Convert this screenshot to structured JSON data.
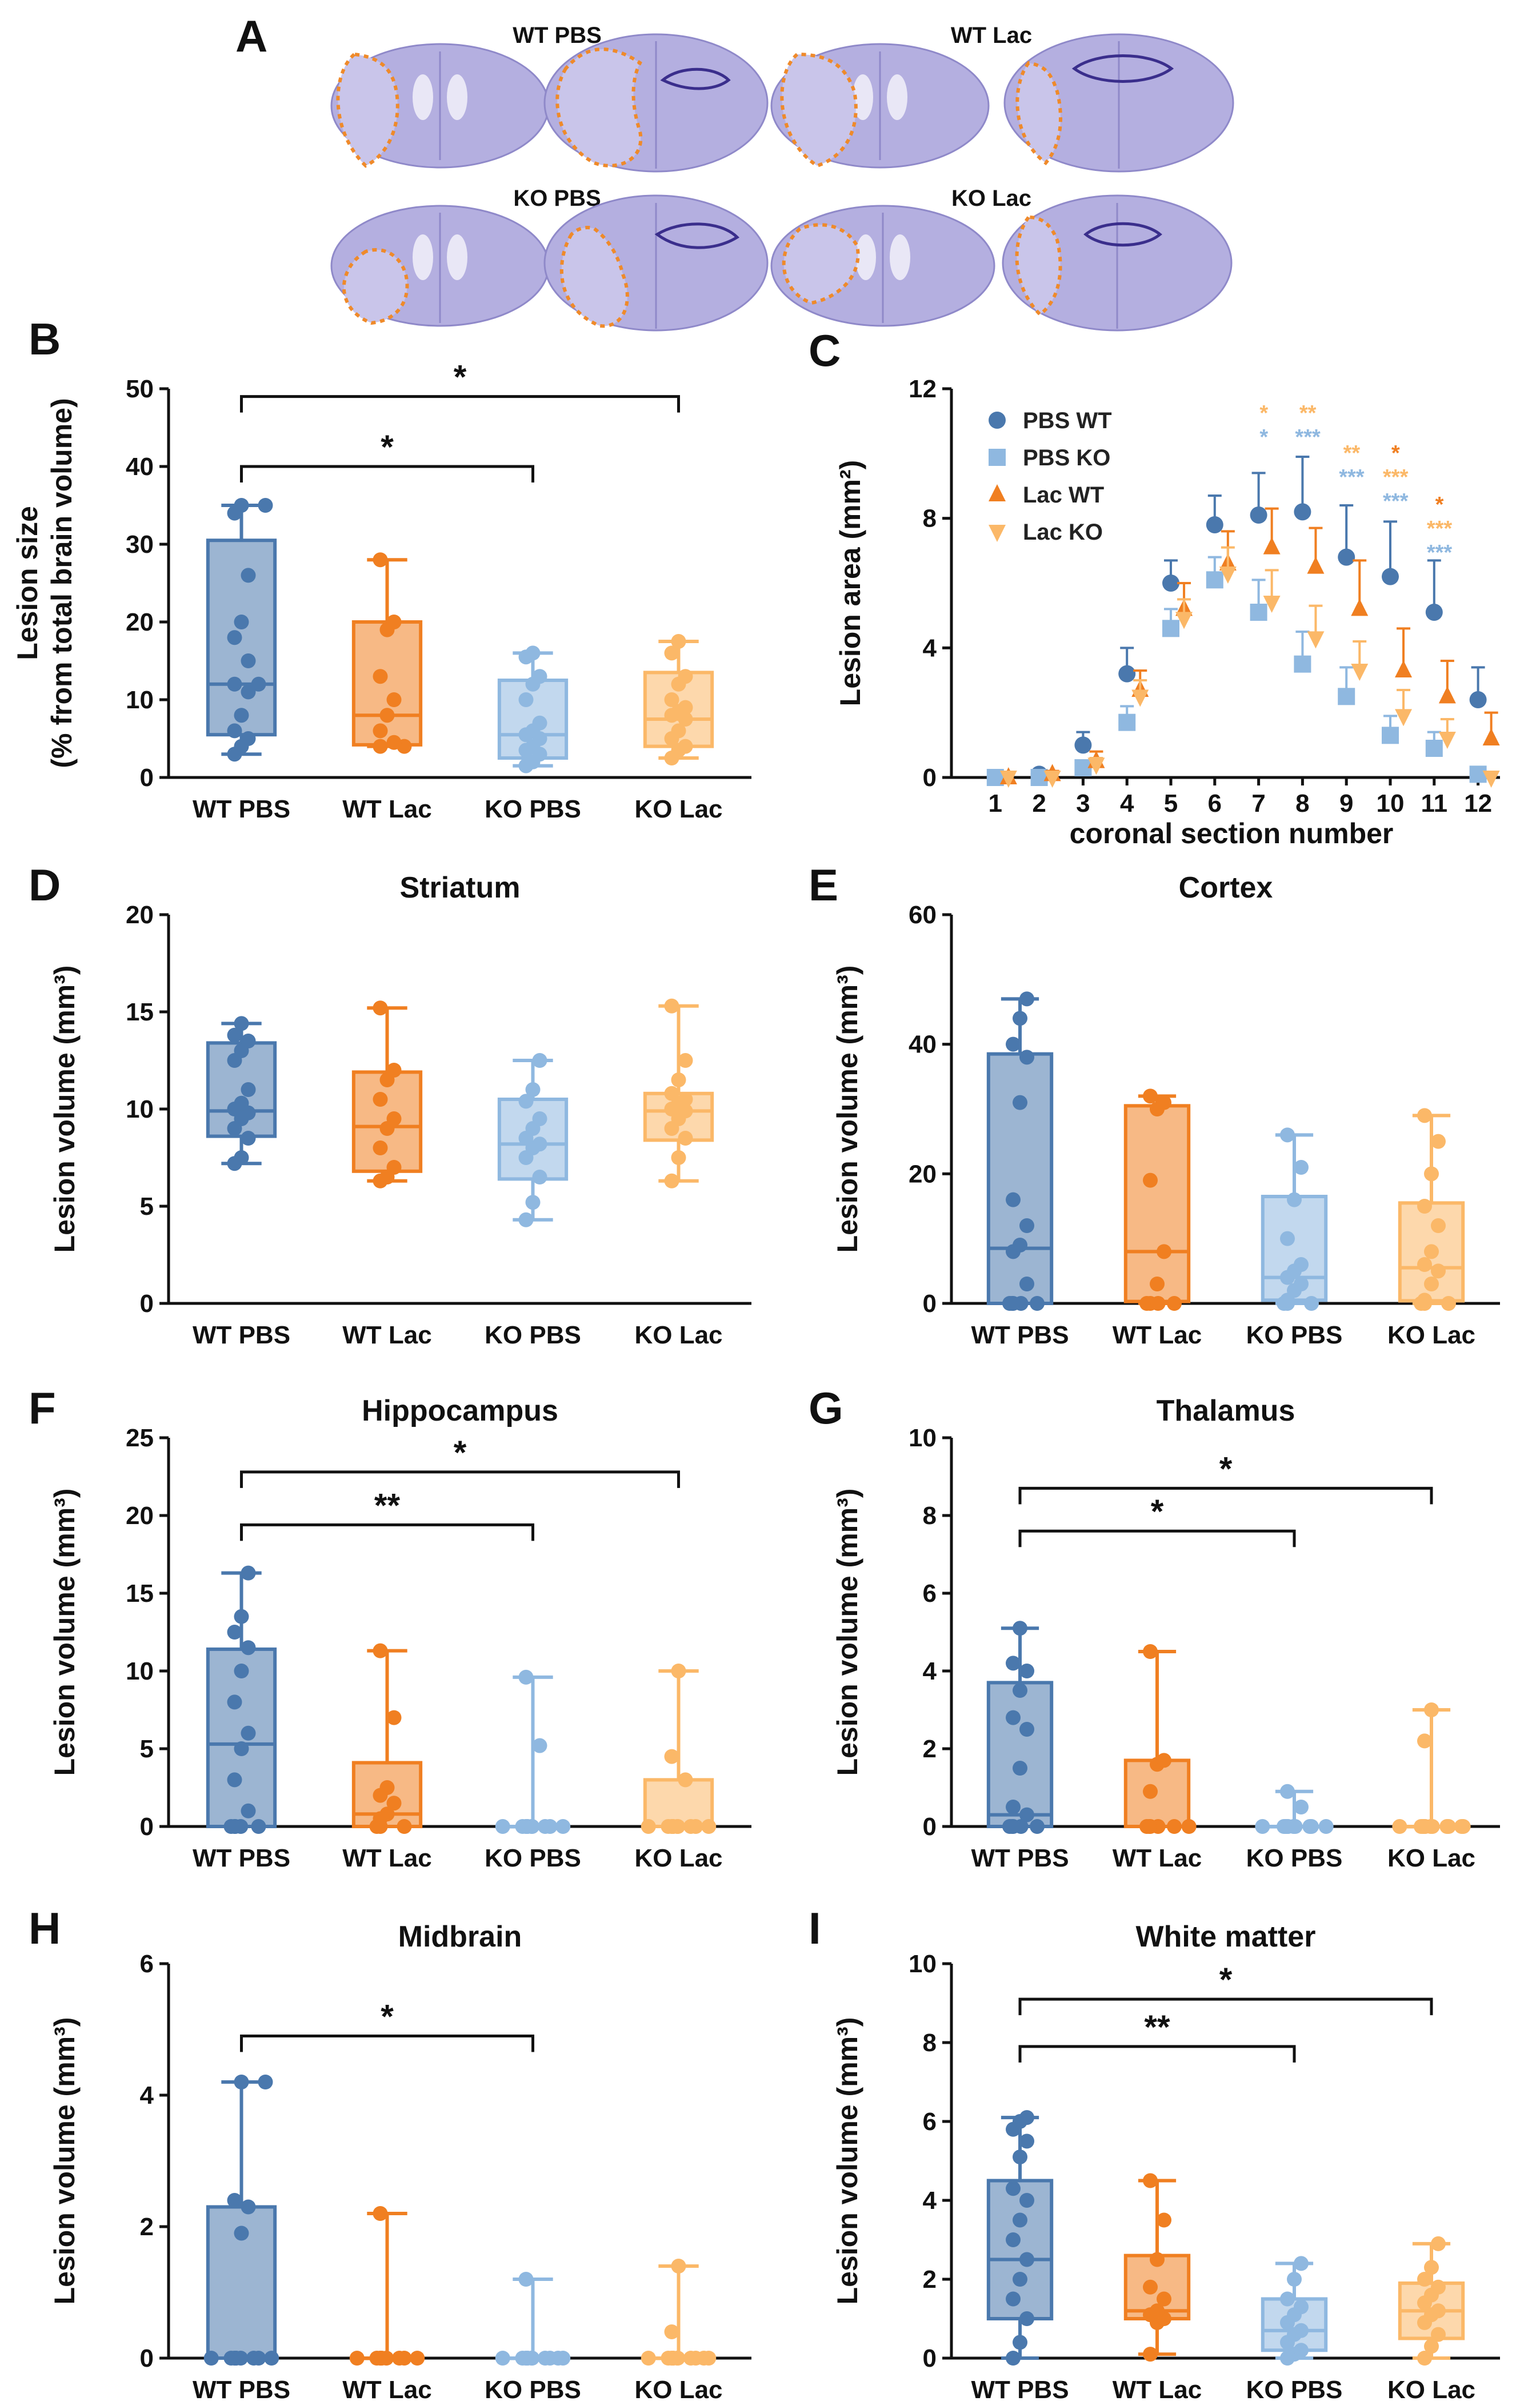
{
  "colors": {
    "wt_pbs": "#4a78ad",
    "wt_lac": "#f07f21",
    "ko_pbs": "#8fb8e0",
    "ko_lac": "#fbb868",
    "axis": "#111111",
    "brain": "#a5a0d6",
    "lesion_outline": "#ef8a2a"
  },
  "panel_a": {
    "letter": "A",
    "images": [
      {
        "label": "WT PBS"
      },
      {
        "label": "WT Lac"
      },
      {
        "label": "KO PBS"
      },
      {
        "label": "KO Lac"
      }
    ]
  },
  "chart_data": [
    {
      "id": "B",
      "letter": "B",
      "type": "box",
      "title": "",
      "ylabel_line1": "Lesion size",
      "ylabel_line2": "(% from total brain volume)",
      "ylim": [
        0,
        50
      ],
      "yticks": [
        0,
        10,
        20,
        30,
        40,
        50
      ],
      "categories": [
        "WT PBS",
        "WT Lac",
        "KO PBS",
        "KO Lac"
      ],
      "boxes": [
        {
          "min": 3,
          "q1": 5.5,
          "median": 12,
          "q3": 30.5,
          "max": 35,
          "points": [
            3,
            4,
            5,
            6,
            8,
            11,
            12,
            12,
            15,
            18,
            20,
            26,
            34,
            35,
            35
          ]
        },
        {
          "min": 4,
          "q1": 4.2,
          "median": 8,
          "q3": 20,
          "max": 28,
          "points": [
            4,
            4,
            4.5,
            6,
            8,
            10,
            13,
            19,
            20,
            28
          ]
        },
        {
          "min": 1.5,
          "q1": 2.5,
          "median": 5.5,
          "q3": 12.5,
          "max": 16,
          "points": [
            1.5,
            2,
            3,
            3.5,
            4,
            5,
            5.5,
            6,
            7,
            10,
            12,
            13,
            15.5,
            16
          ]
        },
        {
          "min": 2.5,
          "q1": 4,
          "median": 7.5,
          "q3": 13.5,
          "max": 17.5,
          "points": [
            2.5,
            3.5,
            4,
            5,
            6,
            7.5,
            8,
            8.5,
            9,
            10,
            12,
            13,
            16,
            17.5
          ]
        }
      ],
      "brackets": [
        {
          "from": 0,
          "to": 3,
          "level": 49,
          "label": "*"
        },
        {
          "from": 0,
          "to": 2,
          "level": 40,
          "label": "*"
        }
      ]
    },
    {
      "id": "C",
      "letter": "C",
      "type": "scatter",
      "ylabel": "Lesion area (mm²)",
      "xlabel": "coronal section number",
      "xlim": [
        0,
        12.5
      ],
      "ylim": [
        0,
        12
      ],
      "yticks": [
        0,
        4,
        8,
        12
      ],
      "x": [
        1,
        2,
        3,
        4,
        5,
        6,
        7,
        8,
        9,
        10,
        11,
        12
      ],
      "series": [
        {
          "name": "PBS WT",
          "marker": "circle",
          "color": "#4a78ad",
          "offset": 0,
          "values": [
            0,
            0.1,
            1,
            3.2,
            6,
            7.8,
            8.1,
            8.2,
            6.8,
            6.2,
            5.1,
            2.4
          ],
          "errors": [
            0,
            0.1,
            0.4,
            0.8,
            0.7,
            0.9,
            1.3,
            1.7,
            1.6,
            1.7,
            1.6,
            1.0
          ]
        },
        {
          "name": "PBS KO",
          "marker": "square",
          "color": "#8fb8e0",
          "offset": 0,
          "values": [
            0,
            0,
            0.3,
            1.7,
            4.6,
            6.1,
            5.1,
            3.5,
            2.5,
            1.3,
            0.9,
            0.1
          ],
          "errors": [
            0,
            0,
            0.2,
            0.5,
            0.6,
            0.7,
            1.0,
            1.0,
            0.9,
            0.6,
            0.5,
            0.1
          ]
        },
        {
          "name": "Lac WT",
          "marker": "triangle-up",
          "color": "#f07f21",
          "offset": 0.3,
          "values": [
            0,
            0.1,
            0.5,
            2.7,
            5.2,
            6.6,
            7.1,
            6.5,
            5.2,
            3.3,
            2.5,
            1.2
          ],
          "errors": [
            0,
            0.1,
            0.3,
            0.6,
            0.8,
            1.0,
            1.2,
            1.2,
            1.5,
            1.3,
            1.1,
            0.8
          ]
        },
        {
          "name": "Lac KO",
          "marker": "triangle-down",
          "color": "#fbb868",
          "offset": 0.3,
          "values": [
            0,
            0,
            0.4,
            2.5,
            4.9,
            6.3,
            5.4,
            4.3,
            3.3,
            1.9,
            1.2,
            0
          ],
          "errors": [
            0,
            0,
            0.2,
            0.5,
            0.6,
            0.8,
            1.0,
            1.0,
            0.9,
            0.8,
            0.6,
            0
          ]
        }
      ],
      "significance": [
        {
          "x": 7,
          "labels": [
            {
              "text": "*",
              "color": "#fbb868"
            },
            {
              "text": "*",
              "color": "#8fb8e0"
            }
          ]
        },
        {
          "x": 8,
          "labels": [
            {
              "text": "**",
              "color": "#fbb868"
            },
            {
              "text": "***",
              "color": "#8fb8e0"
            }
          ]
        },
        {
          "x": 9,
          "labels": [
            {
              "text": "**",
              "color": "#fbb868"
            },
            {
              "text": "***",
              "color": "#8fb8e0"
            }
          ]
        },
        {
          "x": 10,
          "labels": [
            {
              "text": "*",
              "color": "#f07f21"
            },
            {
              "text": "***",
              "color": "#fbb868"
            },
            {
              "text": "***",
              "color": "#8fb8e0"
            }
          ]
        },
        {
          "x": 11,
          "labels": [
            {
              "text": "*",
              "color": "#f07f21"
            },
            {
              "text": "***",
              "color": "#fbb868"
            },
            {
              "text": "***",
              "color": "#8fb8e0"
            }
          ]
        }
      ]
    },
    {
      "id": "D",
      "letter": "D",
      "type": "box",
      "title": "Striatum",
      "ylabel": "Lesion volume (mm³)",
      "ylim": [
        0,
        20
      ],
      "yticks": [
        0,
        5,
        10,
        15,
        20
      ],
      "categories": [
        "WT PBS",
        "WT Lac",
        "KO PBS",
        "KO Lac"
      ],
      "boxes": [
        {
          "min": 7.2,
          "q1": 8.6,
          "median": 9.9,
          "q3": 13.4,
          "max": 14.4,
          "points": [
            7.2,
            7.5,
            8.5,
            9,
            9.5,
            9.8,
            10,
            10.3,
            11,
            12.5,
            13,
            13.5,
            13.8,
            14.4
          ]
        },
        {
          "min": 6.3,
          "q1": 6.8,
          "median": 9.1,
          "q3": 11.9,
          "max": 15.2,
          "points": [
            6.3,
            6.5,
            7,
            8,
            9,
            9.5,
            10.5,
            11.5,
            12,
            15.2
          ]
        },
        {
          "min": 4.3,
          "q1": 6.4,
          "median": 8.2,
          "q3": 10.5,
          "max": 12.5,
          "points": [
            4.3,
            5.2,
            6.5,
            7.5,
            8,
            8.2,
            8.5,
            9,
            9.5,
            10.4,
            11,
            12.5
          ]
        },
        {
          "min": 6.3,
          "q1": 8.4,
          "median": 9.9,
          "q3": 10.8,
          "max": 15.3,
          "points": [
            6.3,
            7.5,
            8.5,
            9,
            9.5,
            9.9,
            10,
            10.3,
            10.5,
            10.8,
            11.5,
            12.5,
            15.3
          ]
        }
      ],
      "brackets": []
    },
    {
      "id": "E",
      "letter": "E",
      "type": "box",
      "title": "Cortex",
      "ylabel": "Lesion volume (mm³)",
      "ylim": [
        0,
        60
      ],
      "yticks": [
        0,
        20,
        40,
        60
      ],
      "categories": [
        "WT PBS",
        "WT Lac",
        "KO PBS",
        "KO Lac"
      ],
      "boxes": [
        {
          "min": 0,
          "q1": 0,
          "median": 8.5,
          "q3": 38.5,
          "max": 47,
          "points": [
            0,
            0,
            0,
            0,
            0,
            3,
            8,
            9,
            12,
            16,
            31,
            38,
            40,
            44,
            47
          ]
        },
        {
          "min": 0,
          "q1": 0.3,
          "median": 8,
          "q3": 30.5,
          "max": 32,
          "points": [
            0,
            0,
            0,
            0,
            3,
            8,
            19,
            30,
            31,
            32
          ]
        },
        {
          "min": 0,
          "q1": 0.5,
          "median": 4,
          "q3": 16.5,
          "max": 26,
          "points": [
            0,
            0,
            0,
            0.5,
            2,
            3,
            4,
            5,
            6,
            10,
            16,
            21,
            26
          ]
        },
        {
          "min": 0,
          "q1": 0.4,
          "median": 5.5,
          "q3": 15.5,
          "max": 29,
          "points": [
            0,
            0,
            0,
            0.5,
            3,
            5,
            6,
            8,
            12,
            15,
            20,
            25,
            29
          ]
        }
      ],
      "brackets": []
    },
    {
      "id": "F",
      "letter": "F",
      "type": "box",
      "title": "Hippocampus",
      "ylabel": "Lesion volume (mm³)",
      "ylim": [
        0,
        25
      ],
      "yticks": [
        0,
        5,
        10,
        15,
        20,
        25
      ],
      "categories": [
        "WT PBS",
        "WT Lac",
        "KO PBS",
        "KO Lac"
      ],
      "boxes": [
        {
          "min": 0,
          "q1": 0,
          "median": 5.3,
          "q3": 11.4,
          "max": 16.3,
          "points": [
            0,
            0,
            0,
            0,
            0,
            1,
            3,
            5,
            6,
            8,
            10,
            11.5,
            12.5,
            13.5,
            16.3
          ]
        },
        {
          "min": 0,
          "q1": 0,
          "median": 0.8,
          "q3": 4.1,
          "max": 11.3,
          "points": [
            0,
            0,
            0,
            0.5,
            0.8,
            1.5,
            2,
            2.5,
            7,
            11.3
          ]
        },
        {
          "min": 0,
          "q1": 0,
          "median": 0,
          "q3": 0,
          "max": 9.6,
          "points": [
            0,
            0,
            0,
            0,
            0,
            0,
            0,
            0,
            0,
            0,
            0,
            5.2,
            9.6
          ]
        },
        {
          "min": 0,
          "q1": 0,
          "median": 0,
          "q3": 3,
          "max": 10,
          "points": [
            0,
            0,
            0,
            0,
            0,
            0,
            0,
            0,
            0,
            0,
            0,
            3,
            4.5,
            10
          ]
        }
      ],
      "brackets": [
        {
          "from": 0,
          "to": 3,
          "level": 22.8,
          "label": "*"
        },
        {
          "from": 0,
          "to": 2,
          "level": 19.4,
          "label": "**"
        }
      ]
    },
    {
      "id": "G",
      "letter": "G",
      "type": "box",
      "title": "Thalamus",
      "ylabel": "Lesion volume (mm³)",
      "ylim": [
        0,
        10
      ],
      "yticks": [
        0,
        2,
        4,
        6,
        8,
        10
      ],
      "categories": [
        "WT PBS",
        "WT Lac",
        "KO PBS",
        "KO Lac"
      ],
      "boxes": [
        {
          "min": 0,
          "q1": 0,
          "median": 0.3,
          "q3": 3.7,
          "max": 5.1,
          "points": [
            0,
            0,
            0,
            0,
            0,
            0.3,
            0.5,
            1.5,
            2.5,
            2.8,
            3.5,
            4,
            4.2,
            5.1
          ]
        },
        {
          "min": 0,
          "q1": 0,
          "median": 0,
          "q3": 1.7,
          "max": 4.5,
          "points": [
            0,
            0,
            0,
            0,
            0,
            0,
            0.9,
            1.6,
            1.7,
            4.5
          ]
        },
        {
          "min": 0,
          "q1": 0,
          "median": 0,
          "q3": 0,
          "max": 0.9,
          "points": [
            0,
            0,
            0,
            0,
            0,
            0,
            0,
            0,
            0,
            0,
            0,
            0.5,
            0.9
          ]
        },
        {
          "min": 0,
          "q1": 0,
          "median": 0,
          "q3": 0,
          "max": 3,
          "points": [
            0,
            0,
            0,
            0,
            0,
            0,
            0,
            0,
            0,
            0,
            0,
            0,
            2.2,
            3
          ]
        }
      ],
      "brackets": [
        {
          "from": 0,
          "to": 3,
          "level": 8.7,
          "label": "*"
        },
        {
          "from": 0,
          "to": 2,
          "level": 7.6,
          "label": "*"
        }
      ]
    },
    {
      "id": "H",
      "letter": "H",
      "type": "box",
      "title": "Midbrain",
      "ylabel": "Lesion volume (mm³)",
      "ylim": [
        0,
        6
      ],
      "yticks": [
        0,
        2,
        4,
        6
      ],
      "categories": [
        "WT PBS",
        "WT Lac",
        "KO PBS",
        "KO Lac"
      ],
      "boxes": [
        {
          "min": 0,
          "q1": 0,
          "median": 0,
          "q3": 2.3,
          "max": 4.2,
          "points": [
            0,
            0,
            0,
            0,
            0,
            0,
            0,
            0,
            0,
            0,
            1.9,
            2.3,
            2.4,
            4.2,
            4.2
          ]
        },
        {
          "min": 0,
          "q1": 0,
          "median": 0,
          "q3": 0,
          "max": 2.2,
          "points": [
            0,
            0,
            0,
            0,
            0,
            0,
            0,
            0,
            0,
            2.2
          ]
        },
        {
          "min": 0,
          "q1": 0,
          "median": 0,
          "q3": 0,
          "max": 1.2,
          "points": [
            0,
            0,
            0,
            0,
            0,
            0,
            0,
            0,
            0,
            0,
            0,
            0,
            1.2
          ]
        },
        {
          "min": 0,
          "q1": 0,
          "median": 0,
          "q3": 0,
          "max": 1.4,
          "points": [
            0,
            0,
            0,
            0,
            0,
            0,
            0,
            0,
            0,
            0,
            0,
            0,
            0.4,
            1.4
          ]
        }
      ],
      "brackets": [
        {
          "from": 0,
          "to": 2,
          "level": 4.9,
          "label": "*"
        }
      ]
    },
    {
      "id": "I",
      "letter": "I",
      "type": "box",
      "title": "White matter",
      "ylabel": "Lesion volume (mm³)",
      "ylim": [
        0,
        10
      ],
      "yticks": [
        0,
        2,
        4,
        6,
        8,
        10
      ],
      "categories": [
        "WT PBS",
        "WT Lac",
        "KO PBS",
        "KO Lac"
      ],
      "boxes": [
        {
          "min": 0,
          "q1": 1,
          "median": 2.5,
          "q3": 4.5,
          "max": 6.1,
          "points": [
            0,
            0.4,
            1,
            1.5,
            2,
            2.5,
            3,
            3.5,
            4,
            4.3,
            5.1,
            5.5,
            5.8,
            6,
            6.1
          ]
        },
        {
          "min": 0.1,
          "q1": 1,
          "median": 1.2,
          "q3": 2.6,
          "max": 4.5,
          "points": [
            0.1,
            0.9,
            1,
            1.1,
            1.2,
            1.5,
            1.8,
            2.5,
            3.5,
            4.5
          ]
        },
        {
          "min": 0,
          "q1": 0.2,
          "median": 0.7,
          "q3": 1.5,
          "max": 2.4,
          "points": [
            0,
            0.1,
            0.2,
            0.4,
            0.6,
            0.7,
            0.9,
            1.1,
            1.3,
            1.5,
            2,
            2.4
          ]
        },
        {
          "min": 0,
          "q1": 0.5,
          "median": 1.2,
          "q3": 1.9,
          "max": 2.9,
          "points": [
            0,
            0.3,
            0.6,
            0.9,
            1.1,
            1.2,
            1.4,
            1.6,
            1.8,
            2,
            2.3,
            2.9
          ]
        }
      ],
      "brackets": [
        {
          "from": 0,
          "to": 3,
          "level": 9.1,
          "label": "*"
        },
        {
          "from": 0,
          "to": 2,
          "level": 7.9,
          "label": "**"
        }
      ]
    }
  ]
}
